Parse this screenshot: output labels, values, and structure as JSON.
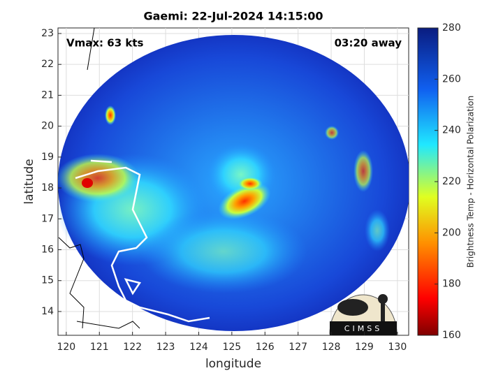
{
  "chart_data": {
    "type": "image",
    "title": "Gaemi: 22-Jul-2024 14:15:00",
    "annotations": [
      "Vmax: 63 kts",
      "03:20 away"
    ],
    "xlabel": "longitude",
    "ylabel": "latitude",
    "xlim": [
      119.75,
      130.34
    ],
    "ylim": [
      13.23,
      23.18
    ],
    "xticks": [
      120,
      121,
      122,
      123,
      124,
      125,
      126,
      127,
      128,
      129,
      130
    ],
    "yticks": [
      14,
      15,
      16,
      17,
      18,
      19,
      20,
      21,
      22,
      23
    ],
    "grid": true,
    "colorbar": {
      "label": "Brightness Temp - Horizontal Polarization",
      "lim": [
        160,
        280
      ],
      "ticks": [
        160,
        180,
        200,
        220,
        240,
        260,
        280
      ]
    },
    "logo": "CIMSS"
  }
}
